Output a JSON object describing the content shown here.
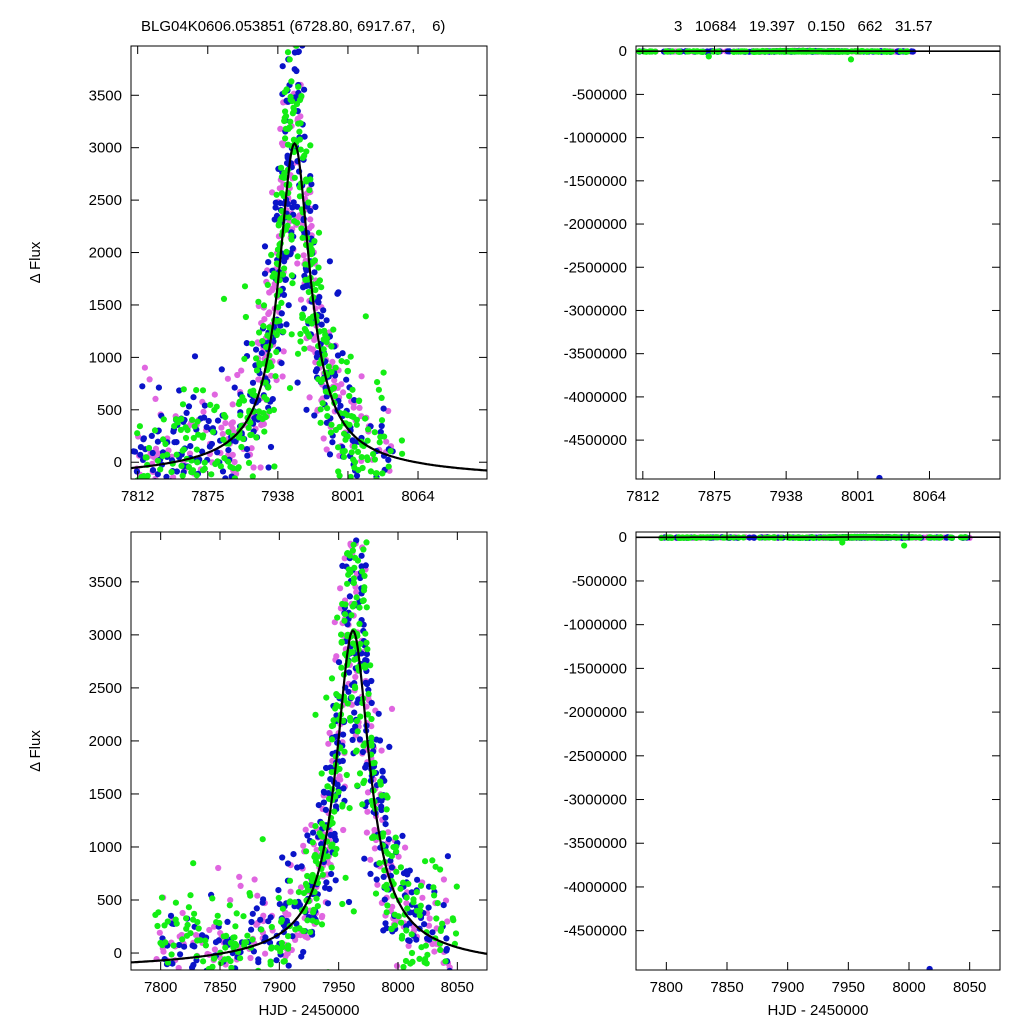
{
  "header": {
    "left": "BLG04K0606.053851 (6728.80, 6917.67,    6)",
    "right": "3   10684   19.397   0.150   662   31.57"
  },
  "colors": {
    "magenta": "#e066e0",
    "blue": "#0a14c8",
    "green": "#14ee14",
    "model": "#000000"
  },
  "chart_data": [
    {
      "id": "top-left",
      "type": "scatter",
      "title": "",
      "xlabel": "",
      "ylabel": "Δ Flux",
      "xlim": [
        7806,
        8126
      ],
      "ylim": [
        -160,
        3970
      ],
      "xticks": [
        7812,
        7875,
        7938,
        8001,
        8064
      ],
      "yticks": [
        0,
        500,
        1000,
        1500,
        2000,
        2500,
        3000,
        3500
      ],
      "model": {
        "t0": 7953,
        "amp": 3040,
        "tau": 17
      },
      "clouds": [
        {
          "color": "magenta",
          "n": 300,
          "x0": 7808,
          "x1": 8040,
          "seed": 11
        },
        {
          "color": "blue",
          "n": 360,
          "x0": 7806,
          "x1": 8045,
          "seed": 22
        },
        {
          "color": "green",
          "n": 440,
          "x0": 7808,
          "x1": 8050,
          "seed": 33
        }
      ]
    },
    {
      "id": "top-right",
      "type": "scatter",
      "title": "",
      "xlabel": "",
      "ylabel": "",
      "xlim": [
        7806,
        8126
      ],
      "ylim": [
        -4950000,
        60000
      ],
      "xticks": [
        7812,
        7875,
        7938,
        8001,
        8064
      ],
      "yticks": [
        0,
        -500000,
        -1000000,
        -1500000,
        -2000000,
        -2500000,
        -3000000,
        -3500000,
        -4000000,
        -4500000
      ],
      "model": {
        "t0": 7953,
        "amp": 3040,
        "tau": 17
      },
      "outliers": [
        {
          "x": 8020,
          "y": -4950000,
          "color": "blue"
        },
        {
          "x": 7995,
          "y": -95000,
          "color": "green"
        },
        {
          "x": 7870,
          "y": -60000,
          "color": "green"
        }
      ],
      "clouds": [
        {
          "color": "magenta",
          "n": 120,
          "x0": 7808,
          "x1": 8050,
          "seed": 44
        },
        {
          "color": "blue",
          "n": 150,
          "x0": 7808,
          "x1": 8050,
          "seed": 55
        },
        {
          "color": "green",
          "n": 180,
          "x0": 7808,
          "x1": 8050,
          "seed": 66
        }
      ]
    },
    {
      "id": "bottom-left",
      "type": "scatter",
      "title": "",
      "xlabel": "HJD - 2450000",
      "ylabel": "Δ Flux",
      "xlim": [
        7775,
        8075
      ],
      "ylim": [
        -160,
        3970
      ],
      "xticks": [
        7800,
        7850,
        7900,
        7950,
        8000,
        8050
      ],
      "yticks": [
        0,
        500,
        1000,
        1500,
        2000,
        2500,
        3000,
        3500
      ],
      "model": {
        "t0": 7962,
        "amp": 3040,
        "tau": 17
      },
      "clouds": [
        {
          "color": "magenta",
          "n": 300,
          "x0": 7795,
          "x1": 8045,
          "seed": 77
        },
        {
          "color": "blue",
          "n": 360,
          "x0": 7800,
          "x1": 8048,
          "seed": 88
        },
        {
          "color": "green",
          "n": 440,
          "x0": 7795,
          "x1": 8050,
          "seed": 99
        }
      ]
    },
    {
      "id": "bottom-right",
      "type": "scatter",
      "title": "",
      "xlabel": "HJD - 2450000",
      "ylabel": "",
      "xlim": [
        7775,
        8075
      ],
      "ylim": [
        -4950000,
        60000
      ],
      "xticks": [
        7800,
        7850,
        7900,
        7950,
        8000,
        8050
      ],
      "yticks": [
        0,
        -500000,
        -1000000,
        -1500000,
        -2000000,
        -2500000,
        -3000000,
        -3500000,
        -4000000,
        -4500000
      ],
      "model": {
        "t0": 7962,
        "amp": 3040,
        "tau": 17
      },
      "outliers": [
        {
          "x": 8017,
          "y": -4950000,
          "color": "blue"
        },
        {
          "x": 7996,
          "y": -95000,
          "color": "green"
        },
        {
          "x": 7945,
          "y": -60000,
          "color": "green"
        }
      ],
      "clouds": [
        {
          "color": "magenta",
          "n": 120,
          "x0": 7795,
          "x1": 8050,
          "seed": 111
        },
        {
          "color": "blue",
          "n": 150,
          "x0": 7795,
          "x1": 8050,
          "seed": 122
        },
        {
          "color": "green",
          "n": 180,
          "x0": 7795,
          "x1": 8050,
          "seed": 133
        }
      ]
    }
  ]
}
